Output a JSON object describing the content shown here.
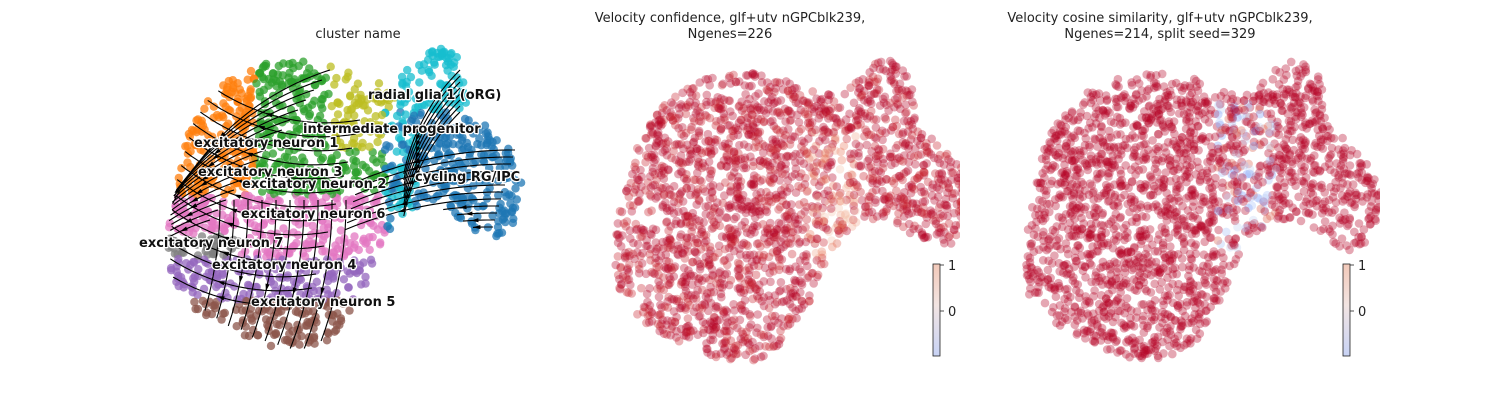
{
  "chart_data": [
    {
      "type": "scatter",
      "title": "cluster name",
      "xlabel": "",
      "ylabel": "",
      "overlay": "velocity streamlines",
      "legend": "on data",
      "clusters": [
        {
          "name": "radial glia 1 (oRG)",
          "color": "#17becf"
        },
        {
          "name": "intermediate progenitor",
          "color": "#bcbd22"
        },
        {
          "name": "excitatory neuron 1",
          "color": "#ff7f0e"
        },
        {
          "name": "excitatory neuron 3",
          "color": "#2ca02c"
        },
        {
          "name": "excitatory neuron 2",
          "color": "#2ca02c"
        },
        {
          "name": "cycling RG/IPC",
          "color": "#1f77b4"
        },
        {
          "name": "excitatory neuron 6",
          "color": "#e377c2"
        },
        {
          "name": "excitatory neuron 7",
          "color": "#7f7f7f"
        },
        {
          "name": "excitatory neuron 4",
          "color": "#9467bd"
        },
        {
          "name": "excitatory neuron 5",
          "color": "#8c564b"
        }
      ]
    },
    {
      "type": "scatter",
      "title_line1": "Velocity confidence, glf+utv nGPCblk239,",
      "title_line2": "Ngenes=226",
      "colormap": "coolwarm",
      "colorbar": {
        "ticks": [
          "1",
          "0"
        ],
        "position": "bottom-right"
      }
    },
    {
      "type": "scatter",
      "title_line1": "Velocity cosine similarity, glf+utv nGPCblk239,",
      "title_line2": "Ngenes=214, split seed=329",
      "colormap": "coolwarm",
      "colorbar": {
        "ticks": [
          "1",
          "0"
        ],
        "position": "bottom-right"
      }
    }
  ]
}
